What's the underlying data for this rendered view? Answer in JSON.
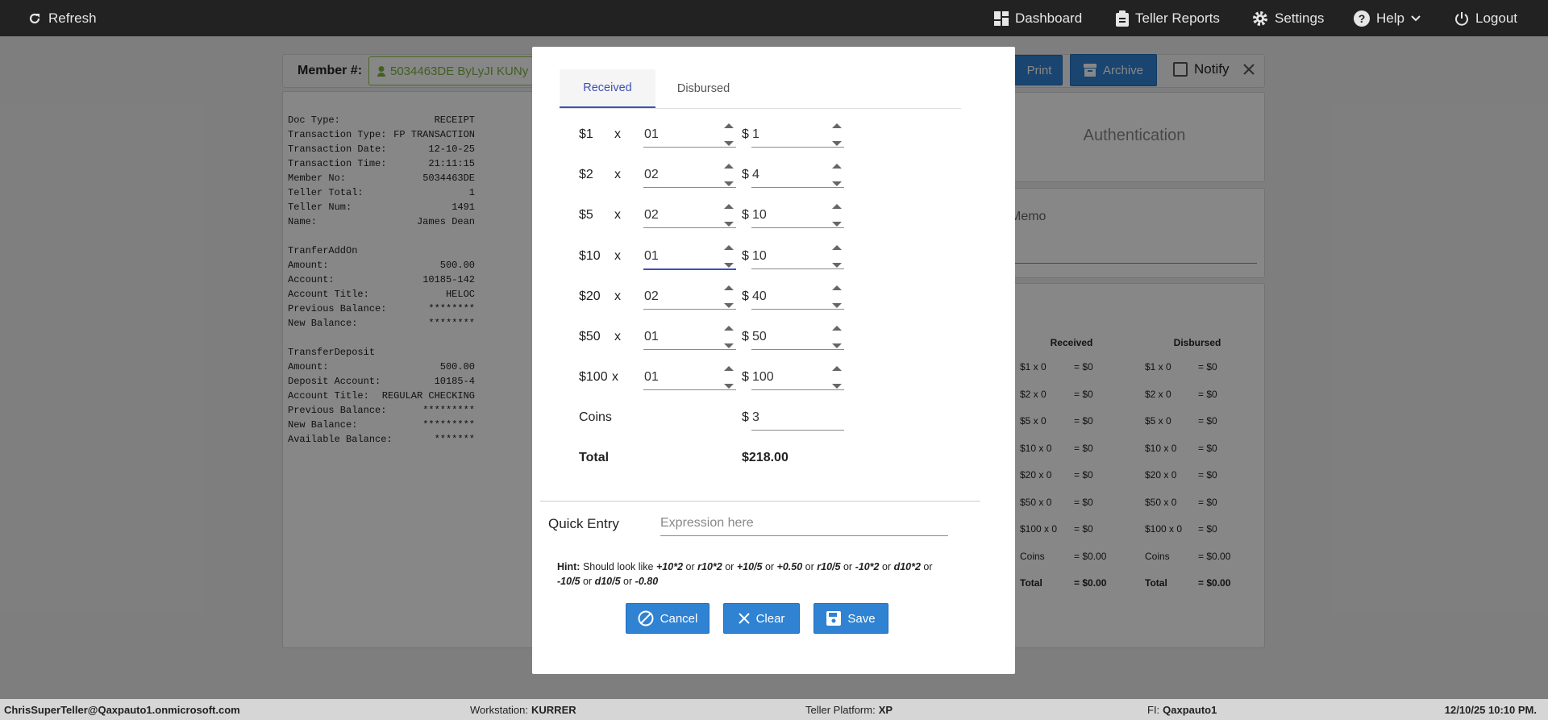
{
  "topbar": {
    "refresh": "Refresh",
    "dashboard": "Dashboard",
    "reports": "Teller Reports",
    "settings": "Settings",
    "help": "Help",
    "logout": "Logout"
  },
  "member": {
    "label": "Member #:",
    "value": "5034463DE ByLyJI KUNy"
  },
  "toolbar": {
    "print": "Print",
    "archive": "Archive",
    "notify": "Notify"
  },
  "receipt": {
    "groups": [
      {
        "rows": [
          [
            "Doc Type:",
            "RECEIPT"
          ],
          [
            "Transaction Type:",
            "FP TRANSACTION"
          ],
          [
            "Transaction Date:",
            "12-10-25"
          ],
          [
            "Transaction Time:",
            "21:11:15"
          ],
          [
            "Member No:",
            "5034463DE"
          ],
          [
            "Teller Total:",
            "1"
          ],
          [
            "Teller Num:",
            "1491"
          ],
          [
            "Name:",
            "James Dean"
          ]
        ]
      },
      {
        "title": "TranferAddOn",
        "rows": [
          [
            "Amount:",
            "500.00"
          ],
          [
            "Account:",
            "10185-142"
          ],
          [
            "Account Title:",
            "HELOC"
          ],
          [
            "Previous Balance:",
            "********"
          ],
          [
            "New Balance:",
            "********"
          ]
        ]
      },
      {
        "title": "TransferDeposit",
        "rows": [
          [
            "Amount:",
            "500.00"
          ],
          [
            "Deposit Account:",
            "10185-4"
          ],
          [
            "Account Title:",
            "REGULAR CHECKING"
          ],
          [
            "Previous Balance:",
            "*********"
          ],
          [
            "New Balance:",
            "*********"
          ],
          [
            "Available Balance:",
            "*******"
          ]
        ]
      }
    ]
  },
  "authentication": "Authentication",
  "memo": "Memo",
  "summary": {
    "headers": [
      "Received",
      "Disbursed"
    ],
    "rows": [
      [
        "$1 x 0",
        "= $0",
        "$1 x 0",
        "= $0"
      ],
      [
        "$2 x 0",
        "= $0",
        "$2 x 0",
        "= $0"
      ],
      [
        "$5 x 0",
        "= $0",
        "$5 x 0",
        "= $0"
      ],
      [
        "$10 x 0",
        "= $0",
        "$10 x 0",
        "= $0"
      ],
      [
        "$20 x 0",
        "= $0",
        "$20 x 0",
        "= $0"
      ],
      [
        "$50 x 0",
        "= $0",
        "$50 x 0",
        "= $0"
      ],
      [
        "$100 x 0",
        "= $0",
        "$100 x 0",
        "= $0"
      ],
      [
        "Coins",
        "= $0.00",
        "Coins",
        "= $0.00"
      ],
      [
        "Total",
        "= $0.00",
        "Total",
        "= $0.00"
      ]
    ]
  },
  "modal": {
    "tabs": [
      "Received",
      "Disbursed"
    ],
    "times": "x",
    "currency": "$",
    "rows": [
      {
        "denom": "$1",
        "qty": "01",
        "amount": "1"
      },
      {
        "denom": "$2",
        "qty": "02",
        "amount": "4"
      },
      {
        "denom": "$5",
        "qty": "02",
        "amount": "10"
      },
      {
        "denom": "$10",
        "qty": "01",
        "amount": "10"
      },
      {
        "denom": "$20",
        "qty": "02",
        "amount": "40"
      },
      {
        "denom": "$50",
        "qty": "01",
        "amount": "50"
      },
      {
        "denom": "$100",
        "qty": "01",
        "amount": "100"
      }
    ],
    "coins": {
      "label": "Coins",
      "amount": "3"
    },
    "total": {
      "label": "Total",
      "amount": "$218.00"
    },
    "quick_entry": {
      "label": "Quick Entry",
      "placeholder": "Expression here"
    },
    "hint": {
      "label": "Hint:",
      "text": "Should look like",
      "separator": "or",
      "examples": [
        "+10*2",
        "r10*2",
        "+10/5",
        "+0.50",
        "r10/5",
        "-10*2",
        "d10*2",
        "-10/5",
        "d10/5",
        "-0.80"
      ]
    },
    "buttons": {
      "cancel": "Cancel",
      "clear": "Clear",
      "save": "Save"
    }
  },
  "footer": {
    "user": "ChrisSuperTeller@Qaxpauto1.onmicrosoft.com",
    "workstation": {
      "label": "Workstation:",
      "value": "KURRER"
    },
    "platform": {
      "label": "Teller Platform:",
      "value": "XP"
    },
    "fi": {
      "label": "FI:",
      "value": "Qaxpauto1"
    },
    "datetime": "12/10/25 10:10 PM."
  }
}
